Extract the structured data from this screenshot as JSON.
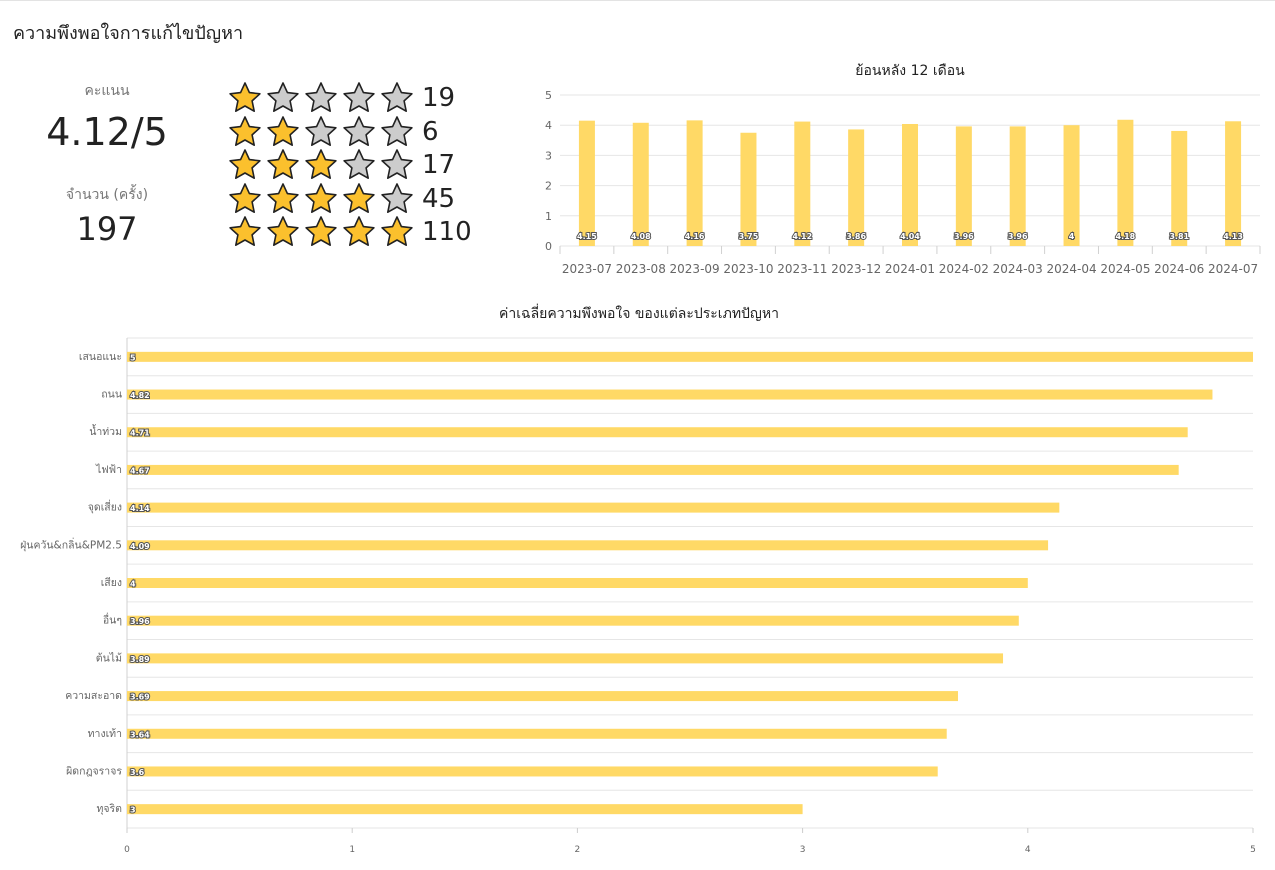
{
  "page": {
    "title": "ความพึงพอใจการแก้ไขปัญหา",
    "score_label": "คะแนน",
    "score_value": "4.12/5",
    "count_label": "จำนวน (ครั้ง)",
    "count_value": "197"
  },
  "colors": {
    "bar": "#ffd966",
    "star_filled": "#fbc02d",
    "star_empty": "#cccccc",
    "grid": "#e6e6e6",
    "axis_text": "#666666"
  },
  "rating_breakdown": [
    {
      "stars": 1,
      "count": "19"
    },
    {
      "stars": 2,
      "count": "6"
    },
    {
      "stars": 3,
      "count": "17"
    },
    {
      "stars": 4,
      "count": "45"
    },
    {
      "stars": 5,
      "count": "110"
    }
  ],
  "chart_data": [
    {
      "type": "bar",
      "title": "ย้อนหลัง 12 เดือน",
      "categories": [
        "2023-07",
        "2023-08",
        "2023-09",
        "2023-10",
        "2023-11",
        "2023-12",
        "2024-01",
        "2024-02",
        "2024-03",
        "2024-04",
        "2024-05",
        "2024-06",
        "2024-07"
      ],
      "values": [
        4.15,
        4.08,
        4.16,
        3.75,
        4.12,
        3.86,
        4.04,
        3.96,
        3.96,
        4,
        4.18,
        3.81,
        4.13
      ],
      "value_labels": [
        "4.15",
        "4.08",
        "4.16",
        "3.75",
        "4.12",
        "3.86",
        "4.04",
        "3.96",
        "3.96",
        "4",
        "4.18",
        "3.81",
        "4.13"
      ],
      "ylim": [
        0,
        5
      ],
      "yticks": [
        "0",
        "1",
        "2",
        "3",
        "4",
        "5"
      ],
      "grid": true,
      "legend": "none"
    },
    {
      "type": "bar",
      "orientation": "horizontal",
      "title": "ค่าเฉลี่ยความพึงพอใจ ของแต่ละประเภทปัญหา",
      "categories": [
        "เสนอแนะ",
        "ถนน",
        "น้ำท่วม",
        "ไฟฟ้า",
        "จุดเสี่ยง",
        "ฝุ่นควัน&กลิ่น&PM2.5",
        "เสียง",
        "อื่นๆ",
        "ต้นไม้",
        "ความสะอาด",
        "ทางเท้า",
        "ผิดกฎจราจร",
        "ทุจริต"
      ],
      "values": [
        5,
        4.82,
        4.71,
        4.67,
        4.14,
        4.09,
        4,
        3.96,
        3.89,
        3.69,
        3.64,
        3.6,
        3
      ],
      "value_labels": [
        "5",
        "4.82",
        "4.71",
        "4.67",
        "4.14",
        "4.09",
        "4",
        "3.96",
        "3.89",
        "3.69",
        "3.64",
        "3.6",
        "3"
      ],
      "xlim": [
        0,
        5
      ],
      "xticks": [
        "0",
        "1",
        "2",
        "3",
        "4",
        "5"
      ],
      "grid": true,
      "legend": "none"
    }
  ]
}
